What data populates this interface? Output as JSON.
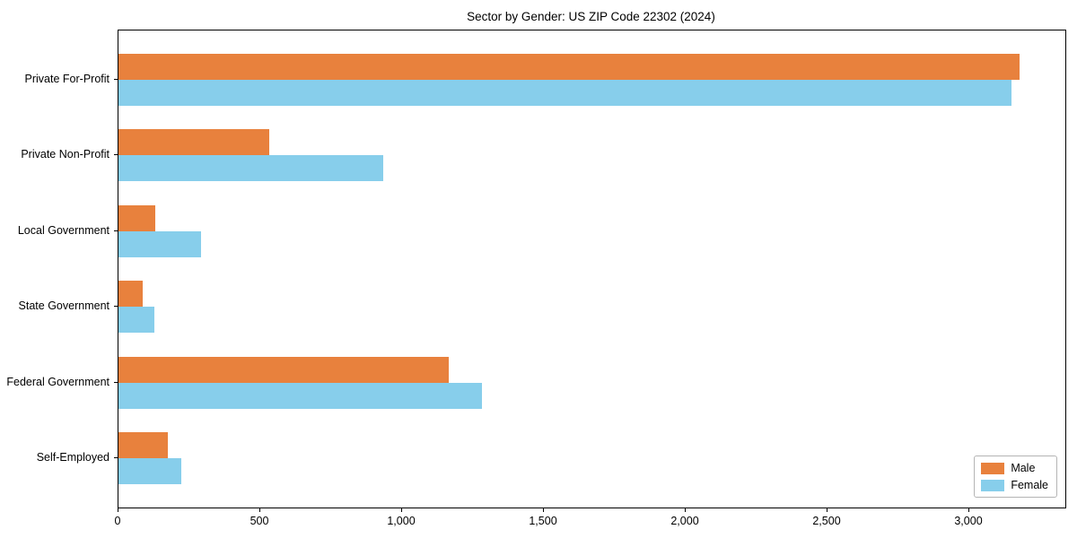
{
  "chart_data": {
    "type": "bar",
    "orientation": "horizontal",
    "title": "Sector by Gender: US ZIP Code 22302 (2024)",
    "categories": [
      "Private For-Profit",
      "Private Non-Profit",
      "Local Government",
      "State Government",
      "Federal Government",
      "Self-Employed"
    ],
    "series": [
      {
        "name": "Male",
        "color": "#E8813D",
        "values": [
          3180,
          532,
          130,
          85,
          1165,
          174
        ]
      },
      {
        "name": "Female",
        "color": "#87CEEB",
        "values": [
          3150,
          934,
          291,
          127,
          1282,
          222
        ]
      }
    ],
    "xlabel": "",
    "ylabel": "",
    "xlim": [
      0,
      3340
    ],
    "xticks": [
      0,
      500,
      1000,
      1500,
      2000,
      2500,
      3000
    ],
    "xtick_labels": [
      "0",
      "500",
      "1,000",
      "1,500",
      "2,000",
      "2,500",
      "3,000"
    ],
    "grid": false,
    "legend": {
      "position": "lower right"
    },
    "colors": {
      "axis": "#000000",
      "background": "#ffffff"
    }
  }
}
